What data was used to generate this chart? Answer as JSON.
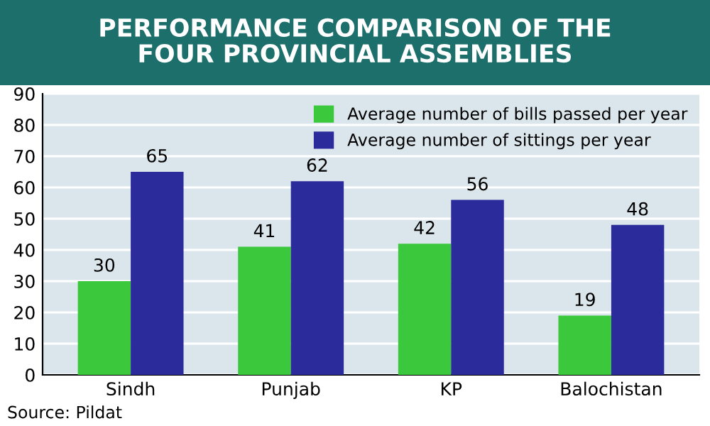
{
  "chart_data": {
    "type": "bar",
    "title": "PERFORMANCE COMPARISON OF THE\nFOUR PROVINCIAL ASSEMBLIES",
    "categories": [
      "Sindh",
      "Punjab",
      "KP",
      "Balochistan"
    ],
    "series": [
      {
        "name": "Average number of bills passed per year",
        "color": "#3cc83c",
        "values": [
          30,
          41,
          42,
          19
        ]
      },
      {
        "name": "Average number of sittings per year",
        "color": "#2b2b9c",
        "values": [
          65,
          62,
          56,
          48
        ]
      }
    ],
    "ylim": [
      0,
      90
    ],
    "yticks": [
      0,
      10,
      20,
      30,
      40,
      50,
      60,
      70,
      80,
      90
    ],
    "grid": "y",
    "legend": "top right",
    "data_labels": true,
    "annotations": [
      "Source: Pildat"
    ]
  }
}
